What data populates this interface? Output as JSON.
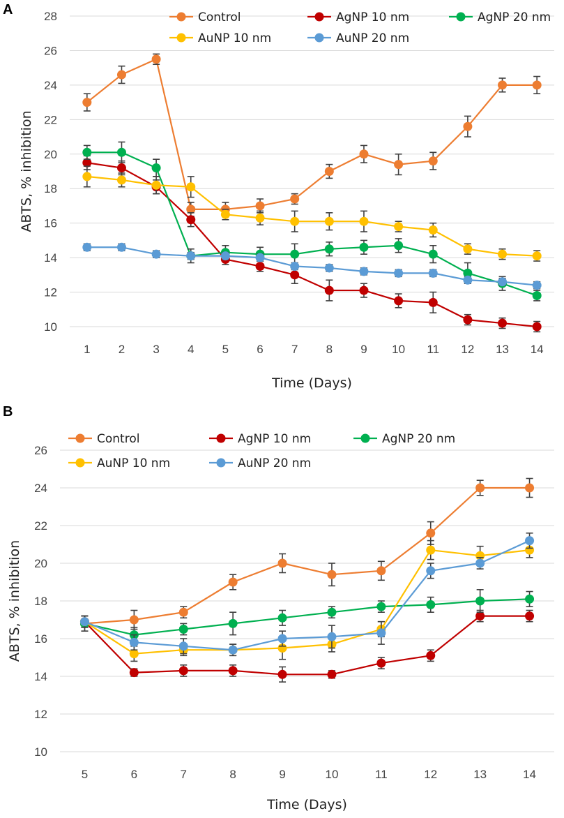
{
  "figure": {
    "colors": {
      "control": "#ED7D31",
      "agnp10": "#C00000",
      "agnp20": "#00B050",
      "aunp10": "#FFC000",
      "aunp20": "#5B9BD5"
    }
  },
  "chart_data": [
    {
      "panel_label": "A",
      "type": "line",
      "title": "",
      "xlabel": "Time (Days)",
      "ylabel": "ABTS, % inhibition",
      "ylim": [
        10,
        28
      ],
      "yticks": [
        "10",
        "12",
        "14",
        "16",
        "18",
        "20",
        "22",
        "24",
        "26",
        "28"
      ],
      "grid": true,
      "legend_position": "top",
      "categories": [
        "1",
        "2",
        "3",
        "4",
        "5",
        "6",
        "7",
        "8",
        "9",
        "10",
        "11",
        "12",
        "13",
        "14"
      ],
      "series": [
        {
          "key": "control",
          "name": "Control",
          "values": [
            23.0,
            24.6,
            25.5,
            16.8,
            16.8,
            17.0,
            17.4,
            19.0,
            20.0,
            19.4,
            19.6,
            21.6,
            24.0,
            24.0
          ],
          "errors": [
            0.5,
            0.5,
            0.3,
            0.4,
            0.4,
            0.4,
            0.3,
            0.4,
            0.5,
            0.6,
            0.5,
            0.6,
            0.4,
            0.5
          ]
        },
        {
          "key": "agnp10",
          "name": "AgNP 10 nm",
          "values": [
            19.5,
            19.2,
            18.1,
            16.2,
            13.9,
            13.5,
            13.0,
            12.1,
            12.1,
            11.5,
            11.4,
            10.4,
            10.2,
            10.0
          ],
          "errors": [
            0.4,
            0.4,
            0.4,
            0.4,
            0.3,
            0.3,
            0.5,
            0.6,
            0.4,
            0.4,
            0.6,
            0.3,
            0.3,
            0.3
          ]
        },
        {
          "key": "agnp20",
          "name": "AgNP 20 nm",
          "values": [
            20.1,
            20.1,
            19.2,
            14.1,
            14.3,
            14.2,
            14.2,
            14.5,
            14.6,
            14.7,
            14.2,
            13.1,
            12.5,
            11.8
          ],
          "errors": [
            0.4,
            0.6,
            0.5,
            0.4,
            0.4,
            0.4,
            0.6,
            0.4,
            0.4,
            0.4,
            0.5,
            0.6,
            0.4,
            0.3
          ]
        },
        {
          "key": "aunp10",
          "name": "AuNP 10 nm",
          "values": [
            18.7,
            18.5,
            18.2,
            18.1,
            16.5,
            16.3,
            16.1,
            16.1,
            16.1,
            15.8,
            15.6,
            14.5,
            14.2,
            14.1
          ],
          "errors": [
            0.6,
            0.4,
            0.5,
            0.6,
            0.3,
            0.4,
            0.6,
            0.5,
            0.6,
            0.3,
            0.4,
            0.3,
            0.3,
            0.3
          ]
        },
        {
          "key": "aunp20",
          "name": "AuNP 20 nm",
          "values": [
            14.6,
            14.6,
            14.2,
            14.1,
            14.1,
            14.0,
            13.5,
            13.4,
            13.2,
            13.1,
            13.1,
            12.7,
            12.6,
            12.4
          ],
          "errors": [
            0.2,
            0.2,
            0.2,
            0.2,
            0.2,
            0.2,
            0.2,
            0.2,
            0.2,
            0.2,
            0.2,
            0.2,
            0.2,
            0.2
          ]
        }
      ]
    },
    {
      "panel_label": "B",
      "type": "line",
      "title": "",
      "xlabel": "Time (Days)",
      "ylabel": "ABTS, % inhibition",
      "ylim": [
        10,
        26
      ],
      "yticks": [
        "10",
        "12",
        "14",
        "16",
        "18",
        "20",
        "22",
        "24",
        "26"
      ],
      "grid": true,
      "legend_position": "top",
      "categories": [
        "5",
        "6",
        "7",
        "8",
        "9",
        "10",
        "11",
        "12",
        "13",
        "14"
      ],
      "series": [
        {
          "key": "control",
          "name": "Control",
          "values": [
            16.8,
            17.0,
            17.4,
            19.0,
            20.0,
            19.4,
            19.6,
            21.6,
            24.0,
            24.0
          ],
          "errors": [
            0.4,
            0.5,
            0.3,
            0.4,
            0.5,
            0.6,
            0.5,
            0.6,
            0.4,
            0.5
          ]
        },
        {
          "key": "agnp10",
          "name": "AgNP 10 nm",
          "values": [
            16.9,
            14.2,
            14.3,
            14.3,
            14.1,
            14.1,
            14.7,
            15.1,
            17.2,
            17.2
          ],
          "errors": [
            0.3,
            0.2,
            0.3,
            0.3,
            0.4,
            0.2,
            0.3,
            0.3,
            0.3,
            0.3
          ]
        },
        {
          "key": "agnp20",
          "name": "AgNP 20 nm",
          "values": [
            16.8,
            16.2,
            16.5,
            16.8,
            17.1,
            17.4,
            17.7,
            17.8,
            18.0,
            18.1
          ],
          "errors": [
            0.4,
            0.4,
            0.3,
            0.6,
            0.4,
            0.3,
            0.3,
            0.4,
            0.6,
            0.4
          ]
        },
        {
          "key": "aunp10",
          "name": "AuNP 10 nm",
          "values": [
            16.9,
            15.2,
            15.4,
            15.4,
            15.5,
            15.7,
            16.5,
            20.7,
            20.4,
            20.7
          ],
          "errors": [
            0.3,
            0.4,
            0.3,
            0.3,
            0.6,
            0.4,
            0.4,
            0.5,
            0.5,
            0.4
          ]
        },
        {
          "key": "aunp20",
          "name": "AuNP 20 nm",
          "values": [
            16.9,
            15.8,
            15.6,
            15.4,
            16.0,
            16.1,
            16.3,
            19.6,
            20.0,
            21.2
          ],
          "errors": [
            0.3,
            0.4,
            0.4,
            0.3,
            0.4,
            0.6,
            0.6,
            0.4,
            0.3,
            0.4
          ]
        }
      ]
    }
  ]
}
